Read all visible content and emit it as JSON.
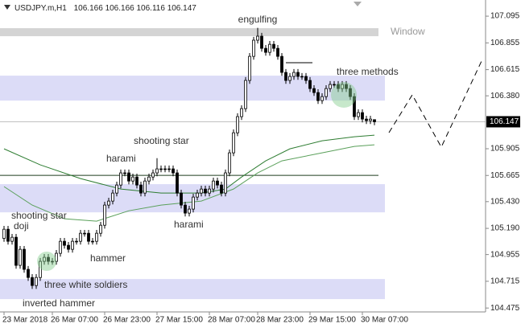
{
  "chart_data": {
    "type": "candlestick",
    "symbol": "USDJPY.m,H1",
    "header_values": [
      106.166,
      106.166,
      106.116,
      106.147
    ],
    "categories": [
      "23 Mar 2018",
      null,
      null,
      null,
      null,
      null,
      null,
      null,
      null,
      null,
      null,
      null,
      "26 Mar 07:00",
      null,
      null,
      null,
      null,
      null,
      null,
      null,
      null,
      null,
      null,
      null,
      null,
      "26 Mar 23:00",
      null,
      null,
      null,
      null,
      null,
      null,
      null,
      null,
      null,
      null,
      null,
      null,
      "27 Mar 15:00",
      null,
      null,
      null,
      null,
      null,
      null,
      null,
      null,
      null,
      null,
      null,
      null,
      "28 Mar 07:00",
      null,
      null,
      null,
      null,
      null,
      null,
      null,
      null,
      null,
      null,
      null,
      "28 Mar 23:00",
      null,
      null,
      null,
      null,
      null,
      null,
      null,
      null,
      null,
      null,
      null,
      null,
      "29 Mar 15:00",
      null,
      null,
      null,
      null,
      null,
      null,
      null,
      null,
      null,
      null,
      null,
      null,
      "30 Mar 07:00",
      null,
      null,
      null
    ],
    "open": [
      105.1,
      105.182,
      105.074,
      105.11,
      104.858,
      105.002,
      104.822,
      104.749,
      104.677,
      104.749,
      104.894,
      104.93,
      104.894,
      104.894,
      104.966,
      105.074,
      105.038,
      105.002,
      105.074,
      105.074,
      105.146,
      105.146,
      105.074,
      105.074,
      105.146,
      105.218,
      105.399,
      105.435,
      105.507,
      105.579,
      105.688,
      105.688,
      105.615,
      105.651,
      105.579,
      105.507,
      105.615,
      105.651,
      105.688,
      105.724,
      105.724,
      105.724,
      105.724,
      105.688,
      105.507,
      105.399,
      105.327,
      105.363,
      105.471,
      105.507,
      105.543,
      105.507,
      105.543,
      105.615,
      105.579,
      105.507,
      105.688,
      105.868,
      106.048,
      106.193,
      106.265,
      106.518,
      106.734,
      106.879,
      106.915,
      106.806,
      106.77,
      106.842,
      106.806,
      106.734,
      106.59,
      106.518,
      106.554,
      106.59,
      106.554,
      106.554,
      106.518,
      106.445,
      106.409,
      106.337,
      106.373,
      106.445,
      106.482,
      106.482,
      106.445,
      106.482,
      106.445,
      106.373,
      106.193,
      106.229,
      106.171,
      106.157,
      106.166
    ],
    "high": [
      105.212,
      105.212,
      105.14,
      105.14,
      105.032,
      105.032,
      104.852,
      104.779,
      104.779,
      104.924,
      104.96,
      104.96,
      104.924,
      104.996,
      105.104,
      105.104,
      105.068,
      105.104,
      105.104,
      105.176,
      105.176,
      105.176,
      105.104,
      105.176,
      105.248,
      105.429,
      105.465,
      105.537,
      105.609,
      105.718,
      105.718,
      105.718,
      105.681,
      105.681,
      105.609,
      105.645,
      105.681,
      105.718,
      105.82,
      105.754,
      105.754,
      105.754,
      105.754,
      105.718,
      105.537,
      105.429,
      105.393,
      105.501,
      105.537,
      105.573,
      105.573,
      105.573,
      105.645,
      105.645,
      105.609,
      105.718,
      105.898,
      106.078,
      106.223,
      106.295,
      106.548,
      106.764,
      106.909,
      106.99,
      106.945,
      106.836,
      106.872,
      106.872,
      106.836,
      106.764,
      106.62,
      106.584,
      106.62,
      106.62,
      106.584,
      106.584,
      106.548,
      106.475,
      106.439,
      106.403,
      106.475,
      106.512,
      106.512,
      106.512,
      106.512,
      106.512,
      106.475,
      106.403,
      106.259,
      106.259,
      106.201,
      106.201,
      106.166
    ],
    "low": [
      105.07,
      105.044,
      105.044,
      104.828,
      104.828,
      104.792,
      104.719,
      104.647,
      104.647,
      104.719,
      104.864,
      104.864,
      104.864,
      104.864,
      104.936,
      105.008,
      104.972,
      104.972,
      105.044,
      105.044,
      105.116,
      105.044,
      105.044,
      105.044,
      105.116,
      105.188,
      105.369,
      105.405,
      105.477,
      105.549,
      105.658,
      105.585,
      105.585,
      105.549,
      105.477,
      105.477,
      105.585,
      105.621,
      105.658,
      105.694,
      105.694,
      105.694,
      105.658,
      105.477,
      105.369,
      105.297,
      105.297,
      105.333,
      105.441,
      105.477,
      105.477,
      105.477,
      105.513,
      105.549,
      105.477,
      105.477,
      105.658,
      105.838,
      106.018,
      106.163,
      106.235,
      106.488,
      106.704,
      106.849,
      106.776,
      106.74,
      106.74,
      106.776,
      106.704,
      106.56,
      106.488,
      106.488,
      106.524,
      106.524,
      106.524,
      106.488,
      106.415,
      106.379,
      106.307,
      106.307,
      106.343,
      106.415,
      106.452,
      106.415,
      106.415,
      106.415,
      106.343,
      106.163,
      106.163,
      106.141,
      106.127,
      106.127,
      106.116
    ],
    "close": [
      105.182,
      105.074,
      105.11,
      104.858,
      105.002,
      104.822,
      104.749,
      104.677,
      104.749,
      104.894,
      104.93,
      104.894,
      104.894,
      104.966,
      105.074,
      105.038,
      105.002,
      105.074,
      105.074,
      105.146,
      105.146,
      105.074,
      105.074,
      105.146,
      105.218,
      105.399,
      105.435,
      105.507,
      105.579,
      105.688,
      105.688,
      105.615,
      105.651,
      105.579,
      105.507,
      105.615,
      105.651,
      105.688,
      105.724,
      105.724,
      105.724,
      105.724,
      105.688,
      105.507,
      105.399,
      105.327,
      105.363,
      105.471,
      105.507,
      105.543,
      105.507,
      105.543,
      105.615,
      105.579,
      105.507,
      105.688,
      105.868,
      106.048,
      106.193,
      106.265,
      106.518,
      106.734,
      106.879,
      106.915,
      106.806,
      106.77,
      106.842,
      106.806,
      106.734,
      106.59,
      106.518,
      106.554,
      106.59,
      106.554,
      106.554,
      106.518,
      106.445,
      106.409,
      106.337,
      106.373,
      106.445,
      106.482,
      106.482,
      106.445,
      106.482,
      106.445,
      106.373,
      106.193,
      106.229,
      106.171,
      106.157,
      106.171,
      106.147
    ],
    "bull_color": "#ffffff",
    "bear_color": "#000000",
    "ylim": [
      104.44,
      107.24
    ],
    "yticks": [
      107.095,
      106.855,
      106.615,
      {
        "value": 106.38,
        "label": "106.380"
      },
      105.905,
      105.665,
      {
        "value": 105.43,
        "label": "105.430"
      },
      {
        "value": 105.19,
        "label": "105.190"
      },
      104.955,
      104.715,
      104.475
    ],
    "current_price": 106.147,
    "indicators": [
      {
        "color": "#2e7d32",
        "x": [
          0,
          9,
          19,
          29,
          39,
          49,
          55,
          59,
          65,
          71,
          79,
          87,
          92
        ],
        "values": [
          105.904,
          105.76,
          105.637,
          105.543,
          105.507,
          105.507,
          105.543,
          105.651,
          105.796,
          105.904,
          105.976,
          106.012,
          106.027
        ]
      },
      {
        "color": "#5aa05a",
        "x": [
          0,
          7,
          15,
          23,
          31,
          39,
          49,
          57,
          63,
          69,
          79,
          87,
          92
        ],
        "values": [
          105.565,
          105.399,
          105.276,
          105.255,
          105.348,
          105.399,
          105.435,
          105.543,
          105.688,
          105.796,
          105.868,
          105.926,
          105.94
        ]
      }
    ],
    "zones": [
      [
        106.337,
        106.561
      ],
      [
        105.334,
        105.587
      ],
      [
        104.555,
        104.735
      ]
    ],
    "zone_color": "#dcdcf7",
    "window_band": [
      106.915,
      106.987
    ],
    "window_color": "#d4d4d4",
    "support_line": 105.666,
    "annotations": [
      "engulfing",
      "Window",
      "three methods",
      "shooting star",
      "harami",
      "harami",
      "shooting star",
      "doji",
      "hammer",
      "three white soldiers",
      "inverted hammer"
    ]
  }
}
